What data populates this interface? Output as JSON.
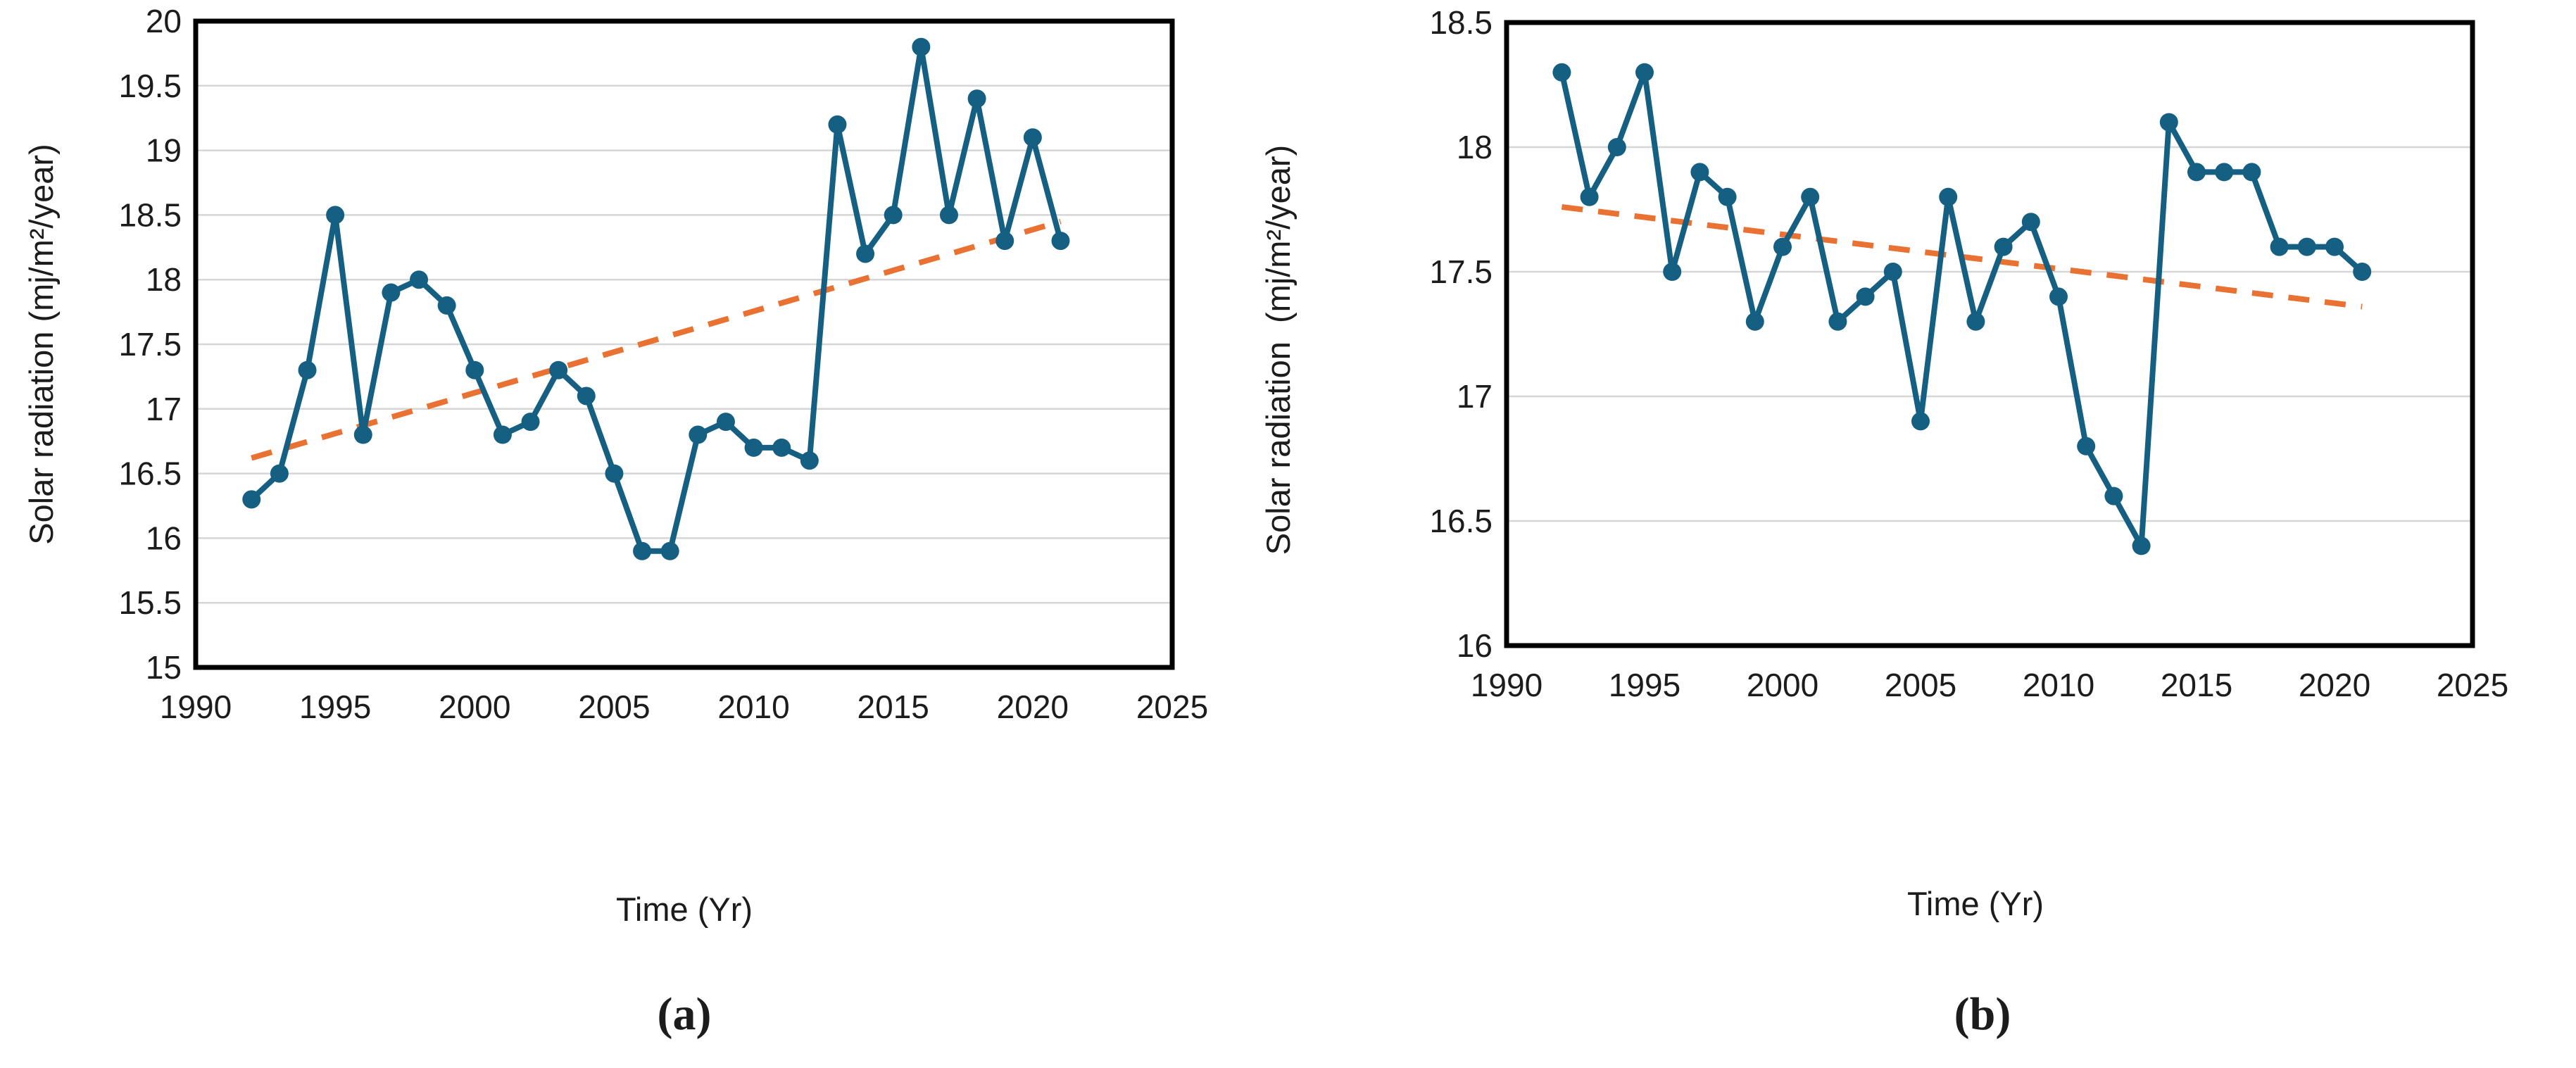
{
  "figure": {
    "background": "#ffffff",
    "panels": [
      "(a)",
      "(b)"
    ]
  },
  "colors": {
    "series_teal": "#156082",
    "trend_orange": "#E97132",
    "gridline_gray": "#D6D6D6",
    "axis_border_black": "#000000",
    "text_dark": "#1c1c1c"
  },
  "chart_data": [
    {
      "id": "a",
      "type": "line",
      "title": "",
      "caption": "(a)",
      "xlabel": "Time (Yr)",
      "ylabel": "Solar radiation (mj/m²/year)",
      "xlim": [
        1990,
        2025
      ],
      "ylim": [
        15,
        20
      ],
      "xticks": [
        1990,
        1995,
        2000,
        2005,
        2010,
        2015,
        2020,
        2025
      ],
      "yticks": [
        15,
        15.5,
        16,
        16.5,
        17,
        17.5,
        18,
        18.5,
        19,
        19.5,
        20
      ],
      "grid": "horizontal",
      "legend": "none",
      "x": [
        1992,
        1993,
        1994,
        1995,
        1996,
        1997,
        1998,
        1999,
        2000,
        2001,
        2002,
        2003,
        2004,
        2005,
        2006,
        2007,
        2008,
        2009,
        2010,
        2011,
        2012,
        2013,
        2014,
        2015,
        2016,
        2017,
        2018,
        2019,
        2020,
        2021
      ],
      "series": [
        {
          "name": "Solar radiation",
          "color": "#156082",
          "marker": "circle",
          "values": [
            16.3,
            16.5,
            17.3,
            18.5,
            16.8,
            17.9,
            18.0,
            17.8,
            17.3,
            16.8,
            16.9,
            17.3,
            17.1,
            16.5,
            15.9,
            15.9,
            16.8,
            16.9,
            16.7,
            16.7,
            16.6,
            19.2,
            18.2,
            18.5,
            19.8,
            18.5,
            19.4,
            18.3,
            19.1,
            18.3
          ]
        }
      ],
      "trend": {
        "name": "linear trend",
        "color": "#E97132",
        "style": "dashed",
        "x": [
          1992,
          2021
        ],
        "y": [
          16.62,
          18.45
        ]
      }
    },
    {
      "id": "b",
      "type": "line",
      "title": "",
      "caption": "(b)",
      "xlabel": "Time (Yr)",
      "ylabel": "Solar radiation  (mj/m²/year)",
      "xlim": [
        1990,
        2025
      ],
      "ylim": [
        16,
        18.5
      ],
      "xticks": [
        1990,
        1995,
        2000,
        2005,
        2010,
        2015,
        2020,
        2025
      ],
      "yticks": [
        16,
        16.5,
        17,
        17.5,
        18,
        18.5
      ],
      "grid": "horizontal",
      "legend": "none",
      "x": [
        1992,
        1993,
        1994,
        1995,
        1996,
        1997,
        1998,
        1999,
        2000,
        2001,
        2002,
        2003,
        2004,
        2005,
        2006,
        2007,
        2008,
        2009,
        2010,
        2011,
        2012,
        2013,
        2014,
        2015,
        2016,
        2017,
        2018,
        2019,
        2020,
        2021
      ],
      "series": [
        {
          "name": "Solar radiation",
          "color": "#156082",
          "marker": "circle",
          "values": [
            18.3,
            17.8,
            18.0,
            18.3,
            17.5,
            17.9,
            17.8,
            17.3,
            17.6,
            17.8,
            17.3,
            17.4,
            17.5,
            16.9,
            17.8,
            17.3,
            17.6,
            17.7,
            17.4,
            16.8,
            16.6,
            16.4,
            18.1,
            17.9,
            17.9,
            17.9,
            17.6,
            17.6,
            17.6,
            17.5
          ]
        }
      ],
      "trend": {
        "name": "linear trend",
        "color": "#E97132",
        "style": "dashed",
        "x": [
          1992,
          2021
        ],
        "y": [
          17.76,
          17.36
        ]
      }
    }
  ]
}
